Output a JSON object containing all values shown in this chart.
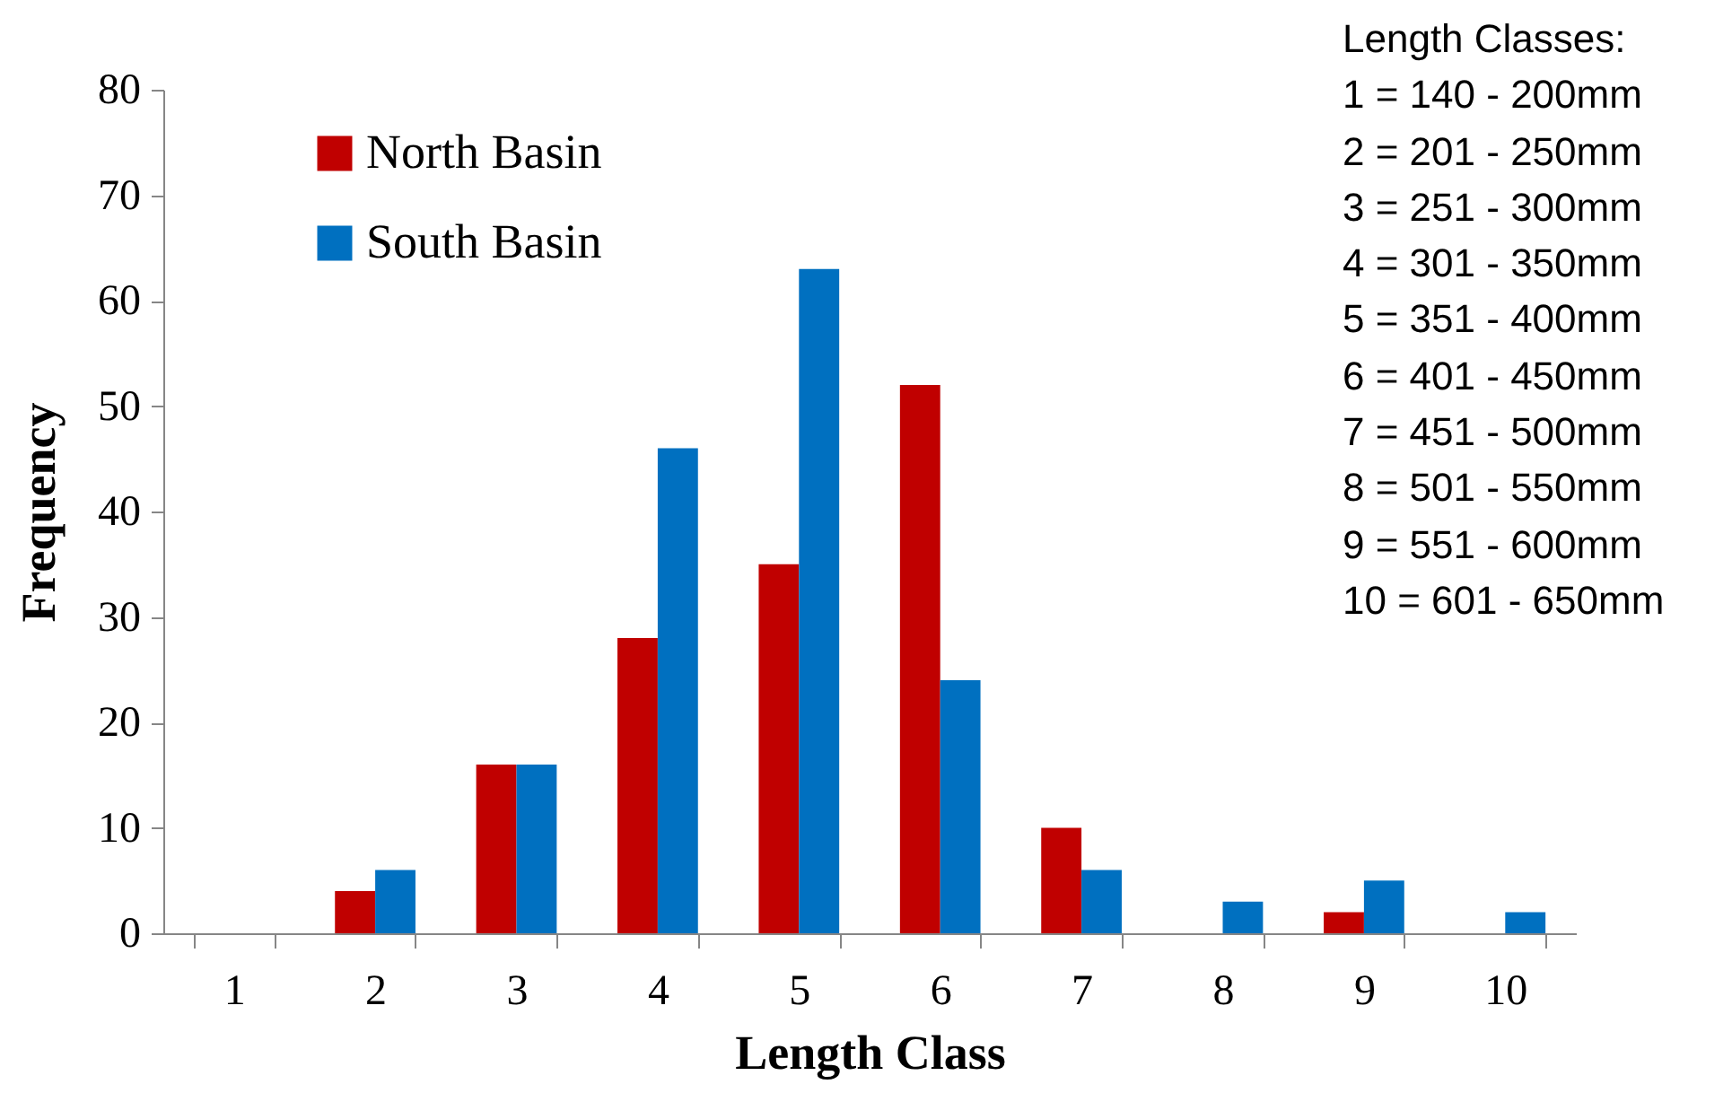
{
  "chart_data": {
    "type": "bar",
    "xlabel": "Length Class",
    "ylabel": "Frequency",
    "categories": [
      "1",
      "2",
      "3",
      "4",
      "5",
      "6",
      "7",
      "8",
      "9",
      "10"
    ],
    "series": [
      {
        "name": "North Basin",
        "color": "#c00000",
        "values": [
          0,
          4,
          16,
          28,
          35,
          52,
          10,
          0,
          2,
          0
        ]
      },
      {
        "name": "South Basin",
        "color": "#0070c0",
        "values": [
          0,
          6,
          16,
          46,
          63,
          24,
          6,
          3,
          5,
          2
        ]
      }
    ],
    "ylim": [
      0,
      80
    ],
    "yticks": [
      0,
      10,
      20,
      30,
      40,
      50,
      60,
      70,
      80
    ],
    "grid": false,
    "legend": "top left",
    "annotations": [
      "Length Classes:",
      "1 = 140 - 200mm",
      "2 = 201 - 250mm",
      "3 = 251 - 300mm",
      "4 = 301 - 350mm",
      "5 = 351 - 400mm",
      "6 = 401 - 450mm",
      "7 = 451 - 500mm",
      "8 = 501 - 550mm",
      "9 = 551 - 600mm",
      "10 = 601 - 650mm"
    ]
  }
}
